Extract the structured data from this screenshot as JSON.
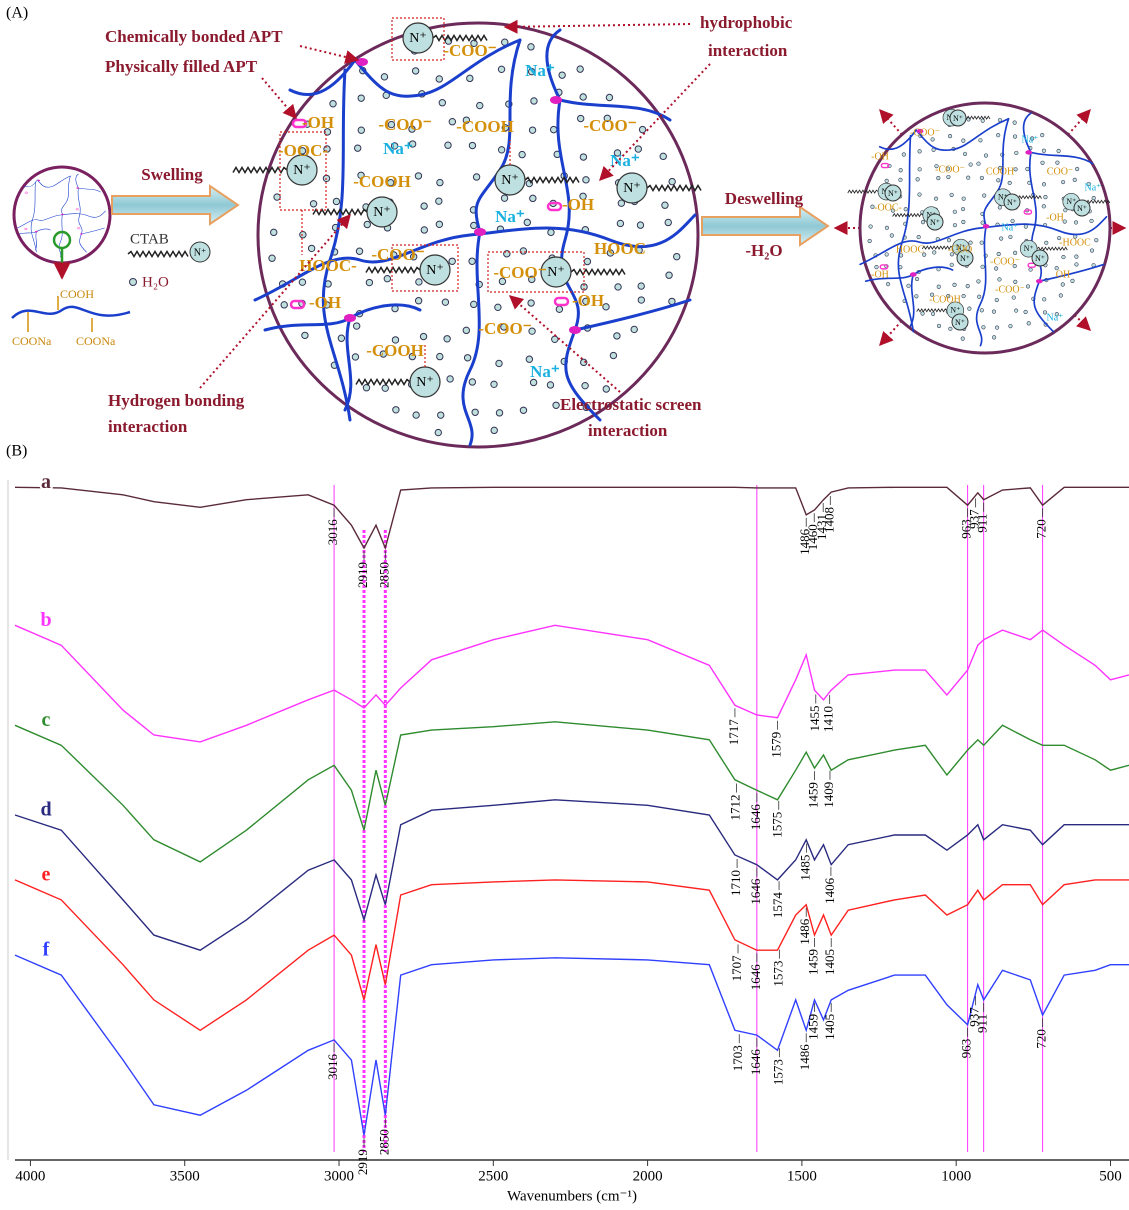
{
  "panel_a": {
    "label": "(A)",
    "chemically_bonded": "Chemically bonded APT",
    "physically_filled": "Physically filled APT",
    "hydrophobic": [
      "hydrophobic",
      "interaction"
    ],
    "hydrogen_bonding": [
      "Hydrogen bonding",
      "interaction"
    ],
    "electrostatic": [
      "Electrostatic screen",
      "interaction"
    ],
    "swelling": "Swelling",
    "ctab": "CTAB",
    "water": "H₂O",
    "deswelling": "Deswelling",
    "water_loss": "-H₂O",
    "ammonium": "N⁺",
    "molecule": [
      "COOH",
      "COONa",
      "COONa"
    ],
    "groups": [
      "-COO⁻",
      "Na⁺",
      "-OH",
      "-COO⁻",
      "-COOH",
      "Na⁺",
      "-COO⁻",
      "Na⁺",
      "-OOC-",
      "-COOH",
      "Na⁺",
      "-OH",
      "HOOC",
      "HOOC-",
      "-COO⁻",
      "-COO⁻",
      "-OH",
      "-OH",
      "-COO⁻",
      "-COOH",
      "Na⁺"
    ],
    "small_groups": [
      "-COO⁻",
      "-OH",
      "-COO⁻",
      "COOH",
      "COO⁻",
      "Na⁺",
      "-OOC-",
      "Na⁺",
      "Na⁺",
      "-OH",
      "HOOC",
      "-COO",
      "-COO⁻",
      "-HOOC",
      "-OH",
      "OH",
      "-COOH",
      "-COO⁻",
      "Na⁺"
    ]
  },
  "panel_b": {
    "label": "(B)"
  },
  "chart_data": {
    "type": "line",
    "x_label": "Wavenumbers (cm⁻¹)",
    "xlim": [
      4050,
      440
    ],
    "xticks": [
      4000,
      3500,
      3000,
      2500,
      2000,
      1500,
      1000,
      500
    ],
    "ylim": [
      0,
      100
    ],
    "x": [
      4050,
      3900,
      3700,
      3600,
      3450,
      3300,
      3100,
      3016,
      2960,
      2919,
      2880,
      2850,
      2800,
      2700,
      2500,
      2300,
      2000,
      1800,
      1717,
      1646,
      1579,
      1520,
      1486,
      1459,
      1430,
      1405,
      1350,
      1200,
      1100,
      1030,
      963,
      930,
      911,
      850,
      760,
      720,
      650,
      550,
      500,
      440
    ],
    "reference_lines": [
      3016,
      1646,
      963,
      911,
      720
    ],
    "dashed_reference_lines": [
      2919,
      2850
    ],
    "reference_color": "#ff33ff",
    "series": [
      {
        "name": "a",
        "color": "#5a2a3a",
        "values": [
          97.5,
          97.4,
          96.4,
          95.4,
          94.6,
          95.7,
          96.4,
          94.9,
          92,
          88.7,
          92,
          88.7,
          97.1,
          97.4,
          97.5,
          97.5,
          97.5,
          97.5,
          97.5,
          97.4,
          97.4,
          97.4,
          93.5,
          94.2,
          95.7,
          96.8,
          97.4,
          97.5,
          97.5,
          97.5,
          94.9,
          96.7,
          95.7,
          97.1,
          97.4,
          94.9,
          97.5,
          97.5,
          97.5,
          97.5
        ],
        "peaks": [
          3016,
          2919,
          2850,
          1486,
          1460,
          1431,
          1408,
          963,
          911,
          937,
          720
        ]
      },
      {
        "name": "b",
        "color": "#ff33ff",
        "values": [
          77.5,
          74.6,
          65.2,
          61.6,
          60.6,
          63,
          66.7,
          68.1,
          66.7,
          65.5,
          67.4,
          65.9,
          68.4,
          72.5,
          75.4,
          77.5,
          75.4,
          71.7,
          65.9,
          64.5,
          64.1,
          69.6,
          73.2,
          68.1,
          66.7,
          68.1,
          70.3,
          71,
          71,
          67.4,
          71,
          74.6,
          75.4,
          76.8,
          75.4,
          76.8,
          74.6,
          71.7,
          69.6,
          70.3
        ],
        "peaks": [
          1717,
          1579,
          1455,
          1410
        ]
      },
      {
        "name": "c",
        "color": "#2e8b2e",
        "values": [
          63,
          60.1,
          51.4,
          46.4,
          43.2,
          47.8,
          55.1,
          57.2,
          53.6,
          47.8,
          56.5,
          51.4,
          61.6,
          62.3,
          62.8,
          63.5,
          62.3,
          60.9,
          55.1,
          53.6,
          52.2,
          56.5,
          59.1,
          56.8,
          58.7,
          56.5,
          58,
          59.4,
          60.1,
          55.8,
          59.4,
          60.9,
          60.1,
          63,
          60.9,
          60.1,
          60.1,
          58,
          56.5,
          57.2
        ],
        "peaks": [
          1712,
          1646,
          1575,
          1459,
          1409
        ]
      },
      {
        "name": "d",
        "color": "#2a2a80",
        "values": [
          50,
          47.8,
          37.7,
          32.6,
          30.4,
          34.8,
          42,
          43.5,
          40.6,
          34.8,
          41.3,
          37,
          48.6,
          50.7,
          51.4,
          52.2,
          51.4,
          50,
          44.2,
          42.8,
          40.6,
          43.5,
          46.4,
          43.5,
          45.7,
          42.8,
          45.7,
          47.1,
          47.1,
          44.9,
          47.1,
          48.6,
          46.4,
          48.6,
          47.8,
          45.7,
          48.6,
          48.6,
          48.6,
          48.6
        ],
        "peaks": [
          1710,
          1646,
          1574,
          1485,
          1406
        ]
      },
      {
        "name": "e",
        "color": "#ff2020",
        "values": [
          40.6,
          37.7,
          28.3,
          23.2,
          18.8,
          23.2,
          30.4,
          32.6,
          29.7,
          23.2,
          31.2,
          25.4,
          38.4,
          39.9,
          40.3,
          40.6,
          40.3,
          39.1,
          31.9,
          30.4,
          30.4,
          35.5,
          37,
          32.6,
          35.5,
          32.6,
          36.2,
          37.7,
          38.4,
          35.5,
          37,
          39.1,
          37.7,
          39.9,
          39.9,
          37,
          39.9,
          40.6,
          40.6,
          40.6
        ],
        "peaks": [
          1707,
          1646,
          1573,
          1486,
          1459,
          1405
        ]
      },
      {
        "name": "f",
        "color": "#3040ff",
        "values": [
          29.7,
          26.8,
          14.5,
          8,
          6.5,
          10.1,
          15.9,
          17.4,
          14.5,
          3.6,
          14.5,
          6.5,
          26.8,
          28.3,
          29,
          29.3,
          29,
          28.3,
          18.8,
          18.1,
          15.9,
          23.2,
          18.8,
          23.2,
          20.3,
          23.2,
          24.6,
          26.8,
          26.8,
          22.5,
          19.6,
          25.4,
          23.2,
          27.5,
          26.1,
          21,
          26.8,
          27.5,
          28.3,
          28.3
        ],
        "peaks": [
          3016,
          2919,
          2850,
          1703,
          1646,
          1573,
          1486,
          1459,
          1405,
          963,
          911,
          937,
          720
        ]
      }
    ]
  }
}
